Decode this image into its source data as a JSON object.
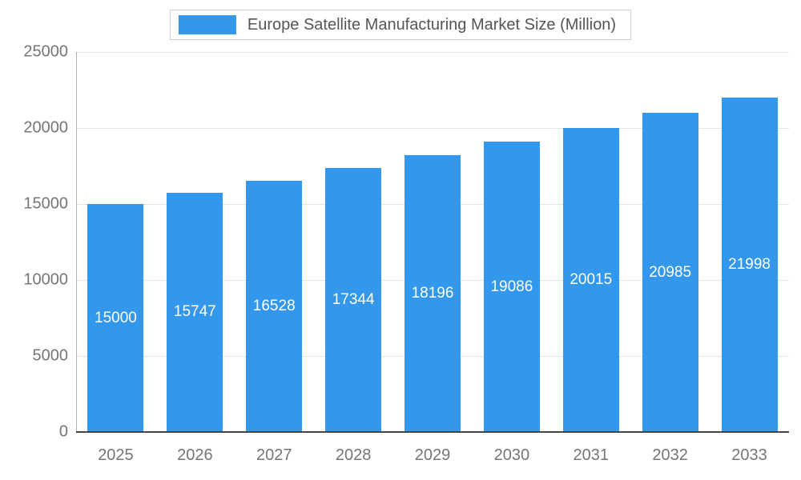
{
  "chart_data": {
    "type": "bar",
    "title": "Europe Satellite Manufacturing Market Size (Million)",
    "categories": [
      "2025",
      "2026",
      "2027",
      "2028",
      "2029",
      "2030",
      "2031",
      "2032",
      "2033"
    ],
    "values": [
      15000,
      15747,
      16528,
      17344,
      18196,
      19086,
      20015,
      20985,
      21998
    ],
    "xlabel": "",
    "ylabel": "",
    "ylim": [
      0,
      25000
    ],
    "yticks": [
      0,
      5000,
      10000,
      15000,
      20000,
      25000
    ],
    "grid": "horizontal",
    "legend_position": "top",
    "bar_color": "#3398EB",
    "value_label_color": "#ffffff"
  }
}
